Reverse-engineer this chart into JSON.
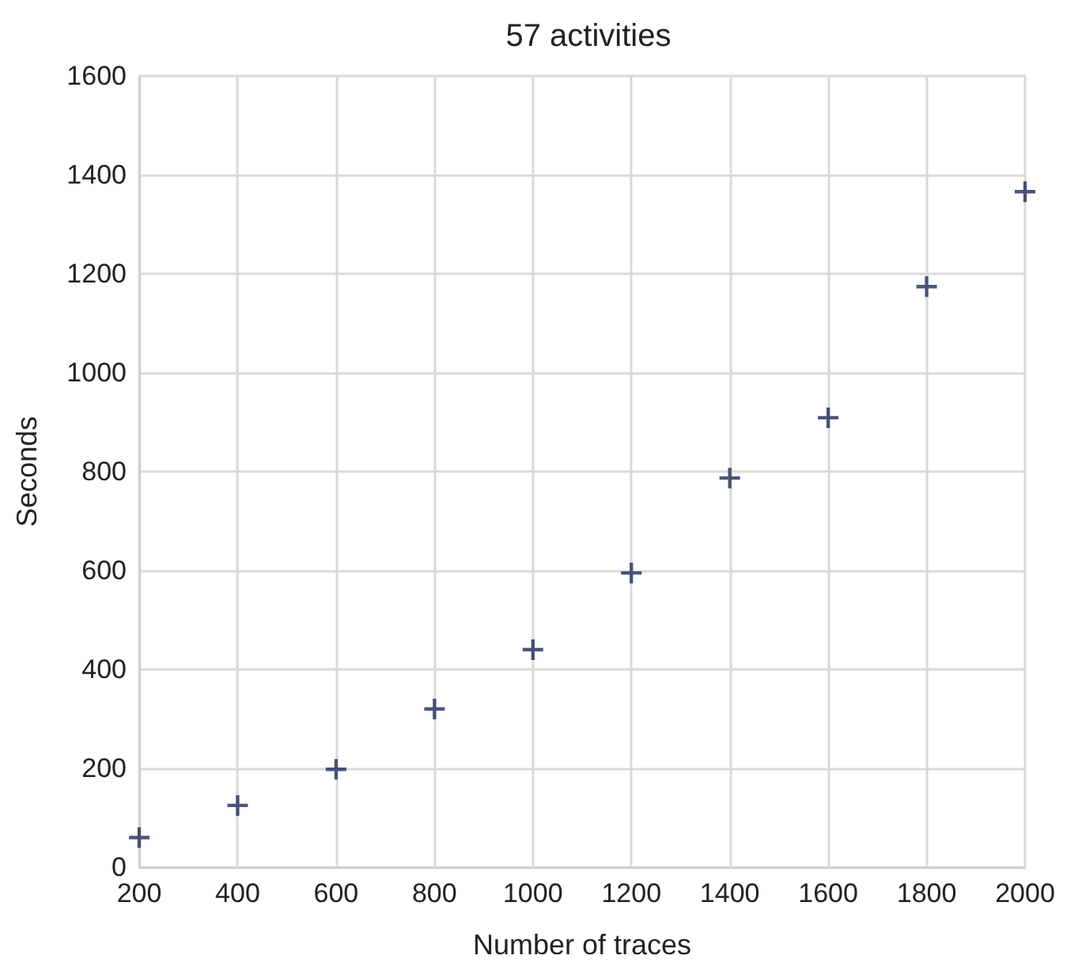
{
  "chart_data": {
    "type": "scatter",
    "title": "57 activities",
    "xlabel": "Number of traces",
    "ylabel": "Seconds",
    "x": [
      200,
      400,
      600,
      800,
      1000,
      1200,
      1400,
      1600,
      1800,
      2000
    ],
    "series": [
      {
        "color": "#1f2a5a",
        "values": [
          60,
          125,
          198,
          320,
          440,
          595,
          787,
          909,
          1174,
          1366
        ]
      }
    ],
    "xlim": [
      200,
      2000
    ],
    "xticks": [
      200,
      400,
      600,
      800,
      1000,
      1200,
      1400,
      1600,
      1800,
      2000
    ],
    "ylim": [
      0,
      1600
    ],
    "yticks": [
      0,
      200,
      400,
      600,
      800,
      1000,
      1200,
      1400,
      1600
    ],
    "grid": true,
    "marker": "cross"
  }
}
